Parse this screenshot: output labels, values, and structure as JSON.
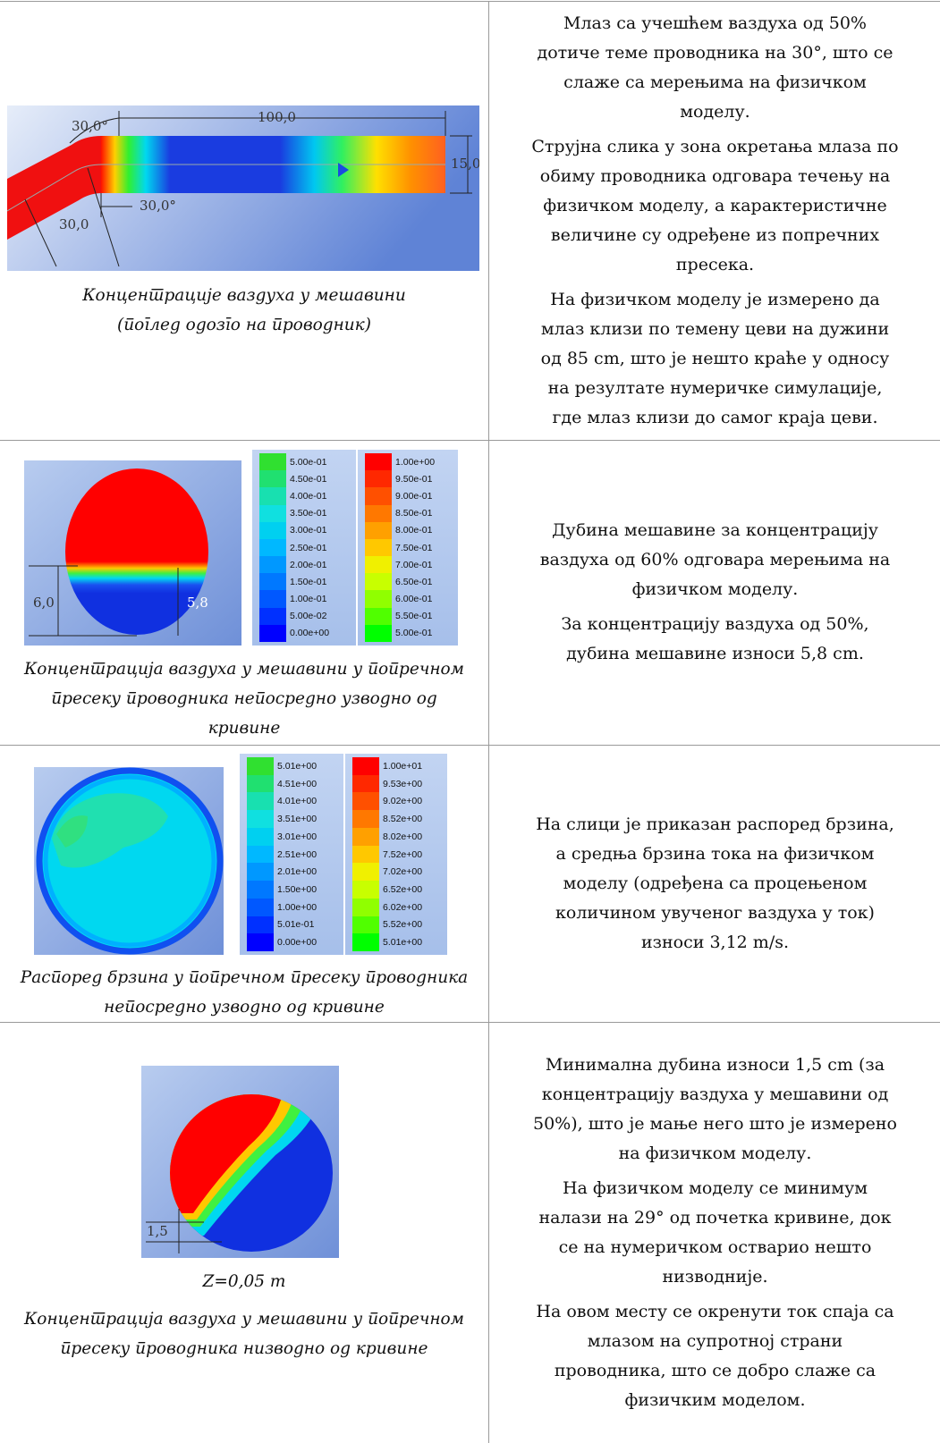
{
  "rows": [
    {
      "figure": {
        "labels": [
          "30,0°",
          "100,0",
          "15,0",
          "30,0",
          "30,0°"
        ]
      },
      "caption": [
        "Концентрације ваздуха у мешавини",
        "(поглед одозго на проводник)"
      ],
      "text": [
        [
          "Млаз са учешћем ваздуха од 50%",
          "дотиче теме проводника на 30°, што се",
          "слаже са мерењима на физичком",
          "моделу."
        ],
        [
          "Струјна слика у зона окретања млаза по",
          "обиму проводника одговара течењу на",
          "физичком моделу, а карактеристичне",
          "величине су одређене из попречних",
          "пресека."
        ],
        [
          "На физичком моделу је измерено да",
          "млаз клизи по темену цеви на дужини",
          "од 85 cm, што је нешто краће у односу",
          "на резултате нумеричке симулације,",
          "где млаз клизи до самог краја цеви."
        ]
      ]
    },
    {
      "figure": {
        "labels": [
          "6,0",
          "5,8"
        ],
        "legends": [
          [
            "5.00e-01",
            "4.50e-01",
            "4.00e-01",
            "3.50e-01",
            "3.00e-01",
            "2.50e-01",
            "2.00e-01",
            "1.50e-01",
            "1.00e-01",
            "5.00e-02",
            "0.00e+00"
          ],
          [
            "1.00e+00",
            "9.50e-01",
            "9.00e-01",
            "8.50e-01",
            "8.00e-01",
            "7.50e-01",
            "7.00e-01",
            "6.50e-01",
            "6.00e-01",
            "5.50e-01",
            "5.00e-01"
          ]
        ]
      },
      "caption": [
        "Концентрација ваздуха у мешавини у попречном",
        "пресеку проводника непосредно узводно од",
        "кривине"
      ],
      "text": [
        [
          "Дубина мешавине за концентрацију",
          "ваздуха од 60% одговара мерењима на",
          "физичком моделу."
        ],
        [
          "За концентрацију ваздуха од 50%,",
          "дубина мешавине износи 5,8 cm."
        ]
      ]
    },
    {
      "figure": {
        "legends": [
          [
            "5.01e+00",
            "4.51e+00",
            "4.01e+00",
            "3.51e+00",
            "3.01e+00",
            "2.51e+00",
            "2.01e+00",
            "1.50e+00",
            "1.00e+00",
            "5.01e-01",
            "0.00e+00"
          ],
          [
            "1.00e+01",
            "9.53e+00",
            "9.02e+00",
            "8.52e+00",
            "8.02e+00",
            "7.52e+00",
            "7.02e+00",
            "6.52e+00",
            "6.02e+00",
            "5.52e+00",
            "5.01e+00"
          ]
        ]
      },
      "caption": [
        "Распоред брзина у попречном пресеку проводника",
        "непосредно узводно од кривине"
      ],
      "text": [
        [
          "На слици је приказан распоред брзина,",
          "а средња брзина тока на физичком",
          "моделу (одређена са процењеном",
          "количином увученог ваздуха у ток)",
          "износи 3,12 m/s."
        ]
      ]
    },
    {
      "figure": {
        "labels": [
          "1,5"
        ],
        "subtitle": "Z=0,05 m"
      },
      "caption": [
        "Концентрација ваздуха у мешавини у попречном",
        "пресеку проводника низводно од кривине"
      ],
      "text": [
        [
          "Минимална дубина износи 1,5 cm (за",
          "концентрацију ваздуха у мешавини од",
          "50%), што је мање него што је измерено",
          "на физичком моделу."
        ],
        [
          "На физичком моделу се минимум",
          "налази на 29° од почетка кривине, док",
          "се на нумеричком остварио нешто",
          "низводније."
        ],
        [
          "На овом месту се окренути ток спаја са",
          "млазом на супротној страни",
          "проводника, што се добро слаже са",
          "физичким моделом."
        ]
      ]
    }
  ]
}
